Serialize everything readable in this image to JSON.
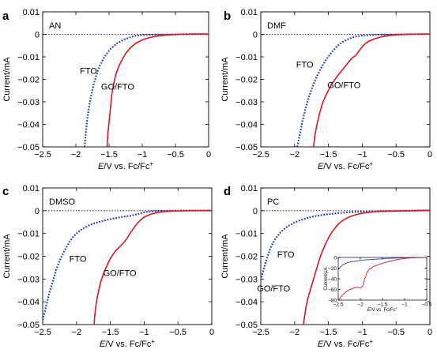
{
  "colors": {
    "fto": "#2b3ab8",
    "go_fto": "#e0141e",
    "axis": "#000000",
    "zero_line": "#000000"
  },
  "chart_data": [
    {
      "type": "scatter",
      "panel": "a",
      "annotation": "AN",
      "xlabel_italic": "E",
      "xlabel_rest": "/V vs. Fc/Fc",
      "xlabel_sup": "+",
      "ylabel": "Current/mA",
      "xlim": [
        -2.5,
        0
      ],
      "ylim": [
        -0.05,
        0.01
      ],
      "xticks": [
        "−2.5",
        "−2",
        "−1.5",
        "−1",
        "−0.5",
        "0"
      ],
      "yticks": [
        "−0.05",
        "−0.04",
        "−0.03",
        "−0.02",
        "−0.01",
        "0",
        "0.01"
      ],
      "xtick_values": [
        -2.5,
        -2,
        -1.5,
        -1,
        -0.5,
        0
      ],
      "ytick_values": [
        -0.05,
        -0.04,
        -0.03,
        -0.02,
        -0.01,
        0,
        0.01
      ],
      "zero_line": true,
      "series": [
        {
          "name": "FTO",
          "style": "dotted",
          "color_key": "fto",
          "label_at": [
            -1.81,
            -0.0175
          ],
          "x": [
            -1.87,
            -1.85,
            -1.83,
            -1.8,
            -1.77,
            -1.73,
            -1.69,
            -1.64,
            -1.57,
            -1.48,
            -1.38,
            -1.27,
            -1.17,
            -1.1,
            -1.0,
            -0.9,
            -0.7,
            -0.5,
            -0.3,
            -0.1,
            0.0
          ],
          "y": [
            -0.05,
            -0.044,
            -0.038,
            -0.032,
            -0.027,
            -0.022,
            -0.018,
            -0.014,
            -0.01,
            -0.0065,
            -0.004,
            -0.0022,
            -0.0012,
            -0.0006,
            -0.0003,
            -0.0002,
            -0.0001,
            0,
            0.0001,
            0.0001,
            0.0001
          ]
        },
        {
          "name": "GO/FTO",
          "style": "solid",
          "color_key": "go_fto",
          "label_at": [
            -1.37,
            -0.0245
          ],
          "x": [
            -1.53,
            -1.52,
            -1.5,
            -1.48,
            -1.46,
            -1.43,
            -1.4,
            -1.35,
            -1.3,
            -1.25,
            -1.18,
            -1.1,
            -1.0,
            -0.9,
            -0.8,
            -0.7,
            -0.6,
            -0.5,
            -0.4,
            -0.2,
            0.0
          ],
          "y": [
            -0.05,
            -0.045,
            -0.039,
            -0.033,
            -0.027,
            -0.022,
            -0.018,
            -0.014,
            -0.011,
            -0.0085,
            -0.006,
            -0.004,
            -0.0025,
            -0.0015,
            -0.0009,
            -0.0005,
            -0.0002,
            -0.0001,
            0,
            0.0001,
            0.0001
          ]
        }
      ]
    },
    {
      "type": "scatter",
      "panel": "b",
      "annotation": "DMF",
      "xlabel_italic": "E",
      "xlabel_rest": "/V vs. Fc/Fc",
      "xlabel_sup": "+",
      "ylabel": "Current/mA",
      "xlim": [
        -2.5,
        0
      ],
      "ylim": [
        -0.05,
        0.01
      ],
      "xticks": [
        "−2.5",
        "−2",
        "−1.5",
        "−1",
        "−0.5",
        "0"
      ],
      "yticks": [
        "−0.05",
        "−0.04",
        "−0.03",
        "−0.02",
        "−0.01",
        "0",
        "0.01"
      ],
      "xtick_values": [
        -2.5,
        -2,
        -1.5,
        -1,
        -0.5,
        0
      ],
      "ytick_values": [
        -0.05,
        -0.04,
        -0.03,
        -0.02,
        -0.01,
        0,
        0.01
      ],
      "zero_line": true,
      "series": [
        {
          "name": "FTO",
          "style": "dotted",
          "color_key": "fto",
          "label_at": [
            -1.85,
            -0.0148
          ],
          "x": [
            -1.96,
            -1.92,
            -1.88,
            -1.83,
            -1.78,
            -1.72,
            -1.66,
            -1.6,
            -1.53,
            -1.45,
            -1.38,
            -1.3,
            -1.2,
            -1.1,
            -1.0,
            -0.8,
            -0.6,
            -0.4,
            -0.2,
            0.0
          ],
          "y": [
            -0.05,
            -0.044,
            -0.038,
            -0.032,
            -0.027,
            -0.022,
            -0.018,
            -0.0145,
            -0.011,
            -0.008,
            -0.0055,
            -0.0035,
            -0.002,
            -0.001,
            -0.0005,
            -0.0002,
            -0.0001,
            0,
            0.0001,
            0.0001
          ]
        },
        {
          "name": "GO/FTO",
          "style": "solid",
          "color_key": "go_fto",
          "label_at": [
            -1.27,
            -0.0238
          ],
          "x": [
            -1.72,
            -1.7,
            -1.67,
            -1.63,
            -1.58,
            -1.52,
            -1.45,
            -1.38,
            -1.3,
            -1.22,
            -1.15,
            -1.1,
            -1.05,
            -1.0,
            -0.95,
            -0.9,
            -0.8,
            -0.7,
            -0.6,
            -0.5,
            -0.3,
            0.0
          ],
          "y": [
            -0.05,
            -0.045,
            -0.04,
            -0.035,
            -0.03,
            -0.026,
            -0.022,
            -0.019,
            -0.016,
            -0.013,
            -0.0105,
            -0.0095,
            -0.0075,
            -0.0055,
            -0.004,
            -0.003,
            -0.0018,
            -0.001,
            -0.0005,
            -0.0002,
            0,
            0.0001
          ]
        }
      ]
    },
    {
      "type": "scatter",
      "panel": "c",
      "annotation": "DMSO",
      "xlabel_italic": "E",
      "xlabel_rest": "/V vs. Fc/Fc",
      "xlabel_sup": "+",
      "ylabel": "Current/mA",
      "xlim": [
        -2.5,
        0
      ],
      "ylim": [
        -0.05,
        0.01
      ],
      "xticks": [
        "−2.5",
        "−2",
        "−1.5",
        "−1",
        "−0.5",
        "0"
      ],
      "yticks": [
        "−0.05",
        "−0.04",
        "−0.03",
        "−0.02",
        "−0.01",
        "0",
        "0.01"
      ],
      "xtick_values": [
        -2.5,
        -2,
        -1.5,
        -1,
        -0.5,
        0
      ],
      "ytick_values": [
        -0.05,
        -0.04,
        -0.03,
        -0.02,
        -0.01,
        0,
        0.01
      ],
      "zero_line": true,
      "series": [
        {
          "name": "FTO",
          "style": "dotted",
          "color_key": "fto",
          "label_at": [
            -1.98,
            -0.0225
          ],
          "x": [
            -2.5,
            -2.45,
            -2.4,
            -2.35,
            -2.3,
            -2.25,
            -2.2,
            -2.15,
            -2.1,
            -2.05,
            -2.0,
            -1.95,
            -1.9,
            -1.85,
            -1.8,
            -1.7,
            -1.6,
            -1.5,
            -1.4,
            -1.3,
            -1.2,
            -1.1,
            -1.0,
            -0.9,
            -0.8,
            -0.6,
            -0.4,
            -0.2,
            0.0
          ],
          "y": [
            -0.048,
            -0.042,
            -0.036,
            -0.031,
            -0.026,
            -0.022,
            -0.019,
            -0.016,
            -0.0135,
            -0.0115,
            -0.01,
            -0.0088,
            -0.0078,
            -0.007,
            -0.0062,
            -0.0052,
            -0.0044,
            -0.0037,
            -0.0031,
            -0.0026,
            -0.0022,
            -0.0015,
            -0.0007,
            -0.0003,
            -0.0001,
            0,
            0.0001,
            0.0001,
            0.0001
          ]
        },
        {
          "name": "GO/FTO",
          "style": "solid",
          "color_key": "go_fto",
          "label_at": [
            -1.36,
            -0.0287
          ],
          "x": [
            -1.74,
            -1.73,
            -1.71,
            -1.68,
            -1.64,
            -1.58,
            -1.5,
            -1.42,
            -1.35,
            -1.3,
            -1.25,
            -1.2,
            -1.15,
            -1.1,
            -1.05,
            -1.0,
            -0.9,
            -0.8,
            -0.7,
            -0.6,
            -0.5,
            -0.3,
            0.0
          ],
          "y": [
            -0.05,
            -0.046,
            -0.041,
            -0.036,
            -0.031,
            -0.026,
            -0.021,
            -0.0175,
            -0.0155,
            -0.014,
            -0.012,
            -0.0095,
            -0.0075,
            -0.0055,
            -0.004,
            -0.0028,
            -0.0015,
            -0.0008,
            -0.0004,
            -0.0002,
            -0.0001,
            0,
            0.0001
          ]
        }
      ]
    },
    {
      "type": "scatter",
      "panel": "d",
      "annotation": "PC",
      "xlabel_italic": "E",
      "xlabel_rest": "/V vs. Fc/Fc",
      "xlabel_sup": "+",
      "ylabel": "Current/mA",
      "xlim": [
        -2.5,
        0
      ],
      "ylim": [
        -0.05,
        0.01
      ],
      "xticks": [
        "−2.5",
        "−2",
        "−1.5",
        "−1",
        "−0.5",
        "0"
      ],
      "yticks": [
        "−0.05",
        "−0.04",
        "−0.03",
        "−0.02",
        "−0.01",
        "0",
        "0.01"
      ],
      "xtick_values": [
        -2.5,
        -2,
        -1.5,
        -1,
        -0.5,
        0
      ],
      "ytick_values": [
        -0.05,
        -0.04,
        -0.03,
        -0.02,
        -0.01,
        0,
        0.01
      ],
      "zero_line": true,
      "series": [
        {
          "name": "FTO",
          "style": "dotted",
          "color_key": "fto",
          "label_at": [
            -2.13,
            -0.0205
          ],
          "x": [
            -2.5,
            -2.45,
            -2.4,
            -2.35,
            -2.3,
            -2.25,
            -2.2,
            -2.1,
            -2.0,
            -1.9,
            -1.8,
            -1.7,
            -1.6,
            -1.5,
            -1.4,
            -1.3,
            -1.2,
            -1.0,
            -0.8,
            -0.6,
            -0.4,
            -0.2,
            0.0
          ],
          "y": [
            -0.0305,
            -0.025,
            -0.02,
            -0.016,
            -0.013,
            -0.011,
            -0.0092,
            -0.0068,
            -0.0052,
            -0.004,
            -0.0031,
            -0.0024,
            -0.0019,
            -0.0015,
            -0.0012,
            -0.0009,
            -0.0007,
            -0.0004,
            -0.0002,
            -0.0001,
            0,
            0.0001,
            0.0002
          ]
        },
        {
          "name": "GO/FTO",
          "style": "solid",
          "color_key": "go_fto",
          "label_at": [
            -2.31,
            -0.0355
          ],
          "x": [
            -1.87,
            -1.85,
            -1.83,
            -1.8,
            -1.76,
            -1.72,
            -1.68,
            -1.64,
            -1.6,
            -1.55,
            -1.5,
            -1.45,
            -1.4,
            -1.35,
            -1.3,
            -1.2,
            -1.1,
            -1.0,
            -0.9,
            -0.8,
            -0.6,
            -0.4,
            -0.2,
            0.0
          ],
          "y": [
            -0.05,
            -0.046,
            -0.042,
            -0.038,
            -0.034,
            -0.03,
            -0.026,
            -0.022,
            -0.0185,
            -0.015,
            -0.012,
            -0.0095,
            -0.0075,
            -0.0058,
            -0.0045,
            -0.0028,
            -0.0018,
            -0.0011,
            -0.0007,
            -0.0004,
            -0.0002,
            -0.0001,
            0,
            0.0001
          ]
        }
      ]
    },
    {
      "type": "line",
      "panel": "d-inset",
      "xlabel_italic": "E",
      "xlabel_rest": "/V vs. Fc/Fc",
      "xlabel_sup": "+",
      "ylabel": "Current/μA",
      "xlim": [
        -2.5,
        -0.5
      ],
      "ylim": [
        -80,
        0
      ],
      "xticks": [
        "−2.5",
        "−2",
        "−1.5",
        "−1",
        "−0.5"
      ],
      "yticks": [
        "−80",
        "−60",
        "−40",
        "−20",
        "0"
      ],
      "xtick_values": [
        -2.5,
        -2,
        -1.5,
        -1,
        -0.5
      ],
      "ytick_values": [
        -80,
        -60,
        -40,
        -20,
        0
      ],
      "zero_line": false,
      "series": [
        {
          "color_key": "fto",
          "style": "solid",
          "x": [
            -2.5,
            -2.4,
            -2.3,
            -2.2,
            -2.0,
            -1.8,
            -1.6,
            -1.4,
            -1.2,
            -1.0,
            -0.8,
            -0.5
          ],
          "y": [
            -22,
            -14,
            -10,
            -8,
            -5.5,
            -4,
            -3,
            -2,
            -1.2,
            -0.6,
            -0.3,
            0
          ]
        },
        {
          "color_key": "go_fto",
          "style": "solid",
          "x": [
            -2.5,
            -2.45,
            -2.4,
            -2.3,
            -2.2,
            -2.1,
            -2.0,
            -1.95,
            -1.9,
            -1.85,
            -1.8,
            -1.7,
            -1.6,
            -1.5,
            -1.4,
            -1.3,
            -1.2,
            -1.1,
            -1.0,
            -0.9,
            -0.8,
            -0.7,
            -0.5
          ],
          "y": [
            -80,
            -76,
            -70,
            -63,
            -59,
            -56,
            -57,
            -54,
            -40,
            -28,
            -22,
            -17,
            -14,
            -11,
            -8.5,
            -6.5,
            -4.5,
            -3,
            -2,
            -1.2,
            -0.6,
            -0.3,
            0
          ]
        }
      ]
    }
  ]
}
